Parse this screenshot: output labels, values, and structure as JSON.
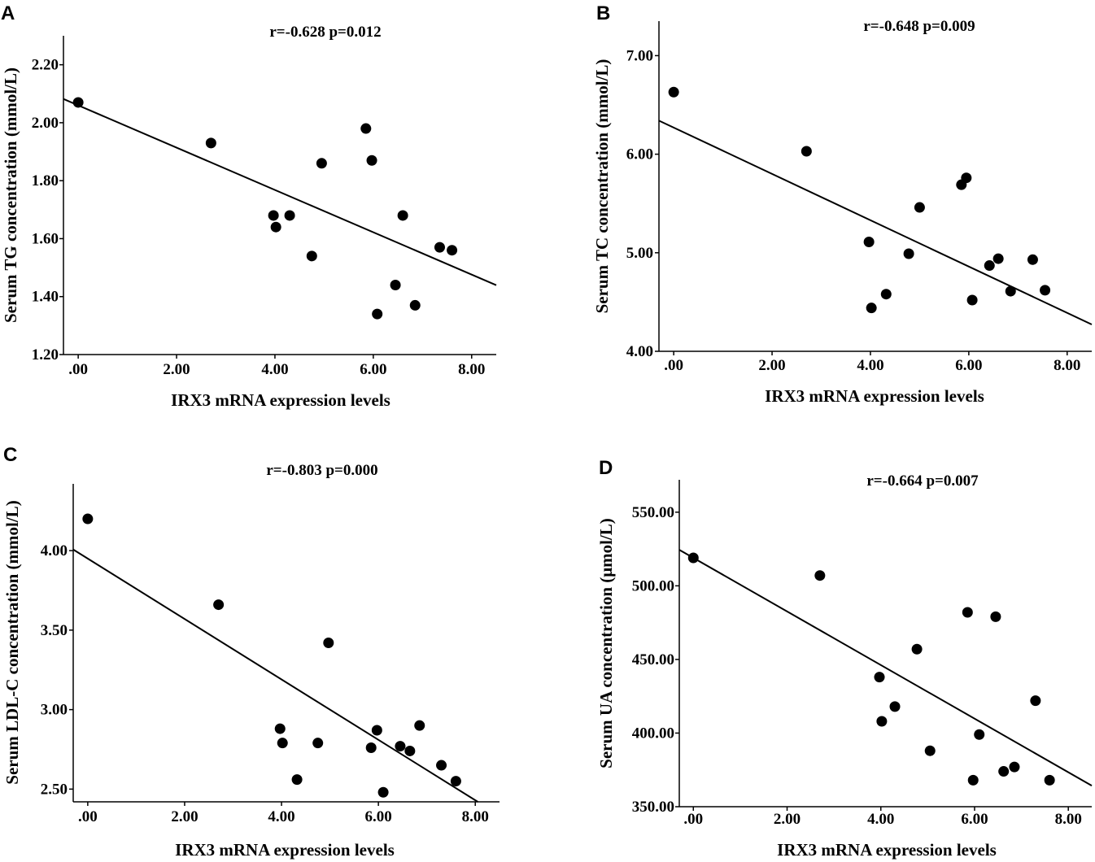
{
  "chart_data": [
    {
      "panel": "A",
      "type": "scatter",
      "stat": "r=-0.628 p=0.012",
      "xlabel": "IRX3 mRNA expression levels",
      "ylabel": "Serum TG concentration (mmol/L)",
      "xlim": [
        -0.3,
        8.5
      ],
      "ylim": [
        1.2,
        2.3
      ],
      "xticks": [
        0,
        2,
        4,
        6,
        8
      ],
      "xtick_labels": [
        ".00",
        "2.00",
        "4.00",
        "6.00",
        "8.00"
      ],
      "yticks": [
        1.2,
        1.4,
        1.6,
        1.8,
        2.0,
        2.2
      ],
      "ytick_labels": [
        "1.20",
        "1.40",
        "1.60",
        "1.80",
        "2.00",
        "2.20"
      ],
      "fit": {
        "intercept": 2.06,
        "slope": -0.073
      },
      "x": [
        0.0,
        2.7,
        3.97,
        4.02,
        4.3,
        4.75,
        4.95,
        5.85,
        5.97,
        6.08,
        6.45,
        6.6,
        6.85,
        7.35,
        7.6
      ],
      "y": [
        2.07,
        1.93,
        1.68,
        1.64,
        1.68,
        1.54,
        1.86,
        1.98,
        1.87,
        1.34,
        1.44,
        1.68,
        1.37,
        1.57,
        1.56
      ]
    },
    {
      "panel": "B",
      "type": "scatter",
      "stat": "r=-0.648 p=0.009",
      "xlabel": "IRX3 mRNA expression levels",
      "ylabel": "Serum TC concentration (mmol/L)",
      "xlim": [
        -0.3,
        8.5
      ],
      "ylim": [
        4.0,
        7.35
      ],
      "xticks": [
        0,
        2,
        4,
        6,
        8
      ],
      "xtick_labels": [
        ".00",
        "2.00",
        "4.00",
        "6.00",
        "8.00"
      ],
      "yticks": [
        4.0,
        5.0,
        6.0,
        7.0
      ],
      "ytick_labels": [
        "4.00",
        "5.00",
        "6.00",
        "7.00"
      ],
      "fit": {
        "intercept": 6.27,
        "slope": -0.235
      },
      "x": [
        0.0,
        2.7,
        3.97,
        4.02,
        4.32,
        4.78,
        5.0,
        5.85,
        5.95,
        6.07,
        6.42,
        6.6,
        6.85,
        7.3,
        7.55
      ],
      "y": [
        6.63,
        6.03,
        5.11,
        4.44,
        4.58,
        4.99,
        5.46,
        5.69,
        5.76,
        4.52,
        4.87,
        4.94,
        4.61,
        4.93,
        4.62
      ]
    },
    {
      "panel": "C",
      "type": "scatter",
      "stat": "r=-0.803 p=0.000",
      "xlabel": "IRX3 mRNA expression levels",
      "ylabel": "Serum LDL-C concentration (mmol/L)",
      "xlim": [
        -0.3,
        8.5
      ],
      "ylim": [
        2.42,
        4.42
      ],
      "xticks": [
        0,
        2,
        4,
        6,
        8
      ],
      "xtick_labels": [
        ".00",
        "2.00",
        "4.00",
        "6.00",
        "8.00"
      ],
      "yticks": [
        2.5,
        3.0,
        3.5,
        4.0
      ],
      "ytick_labels": [
        "2.50",
        "3.00",
        "3.50",
        "4.00"
      ],
      "fit": {
        "intercept": 3.95,
        "slope": -0.19
      },
      "x": [
        0.0,
        2.7,
        3.97,
        4.02,
        4.32,
        4.75,
        4.97,
        5.85,
        5.97,
        6.1,
        6.45,
        6.65,
        6.85,
        7.3,
        7.6
      ],
      "y": [
        4.2,
        3.66,
        2.88,
        2.79,
        2.56,
        2.79,
        3.42,
        2.76,
        2.87,
        2.48,
        2.77,
        2.74,
        2.9,
        2.65,
        2.55
      ]
    },
    {
      "panel": "D",
      "type": "scatter",
      "stat": "r=-0.664 p=0.007",
      "xlabel": "IRX3 mRNA expression levels",
      "ylabel": "Serum UA concentration (μmol/L)",
      "xlim": [
        -0.3,
        8.5
      ],
      "ylim": [
        350,
        572
      ],
      "xticks": [
        0,
        2,
        4,
        6,
        8
      ],
      "xtick_labels": [
        ".00",
        "2.00",
        "4.00",
        "6.00",
        "8.00"
      ],
      "yticks": [
        350,
        400,
        450,
        500,
        550
      ],
      "ytick_labels": [
        "350.00",
        "400.00",
        "450.00",
        "500.00",
        "550.00"
      ],
      "fit": {
        "intercept": 519,
        "slope": -18.2
      },
      "x": [
        0.0,
        2.7,
        3.97,
        4.02,
        4.3,
        4.77,
        5.05,
        5.85,
        5.97,
        6.1,
        6.45,
        6.62,
        6.85,
        7.3,
        7.6
      ],
      "y": [
        519,
        507,
        438,
        408,
        418,
        457,
        388,
        482,
        368,
        399,
        479,
        374,
        377,
        422,
        368
      ]
    }
  ]
}
